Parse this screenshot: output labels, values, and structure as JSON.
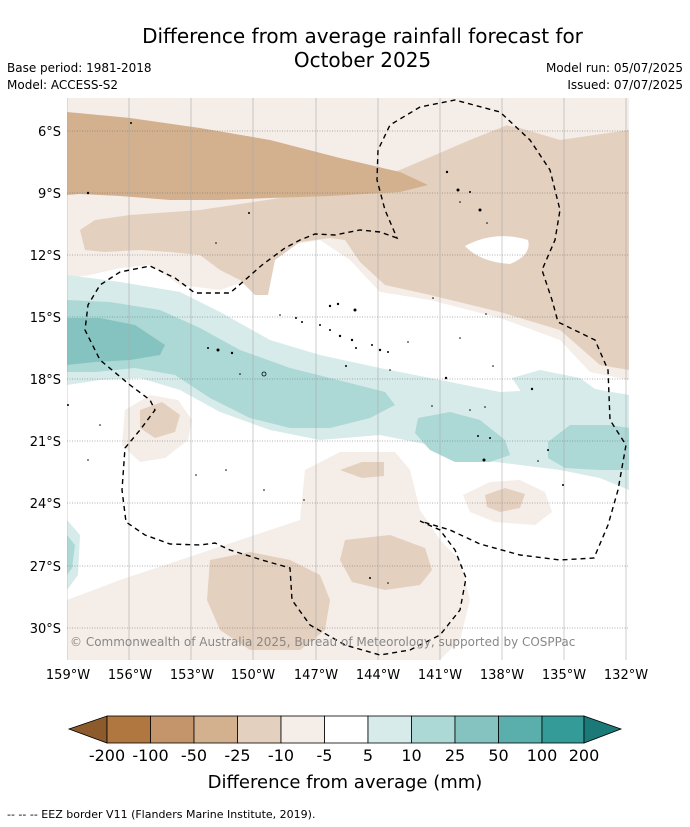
{
  "header": {
    "title_line1": "Difference from average rainfall forecast for",
    "title_line2": "October 2025",
    "base_period": "Base period: 1981-2018",
    "model": "Model: ACCESS-S2",
    "model_run": "Model run: 05/07/2025",
    "issued": "Issued: 07/07/2025"
  },
  "map": {
    "lat_labels": [
      "6°S",
      "9°S",
      "12°S",
      "15°S",
      "18°S",
      "21°S",
      "24°S",
      "27°S",
      "30°S"
    ],
    "lon_labels": [
      "159°W",
      "156°W",
      "153°W",
      "150°W",
      "147°W",
      "144°W",
      "141°W",
      "138°W",
      "135°W",
      "132°W"
    ],
    "copyright": "© Commonwealth of Australia 2025, Bureau of Meteorology, supported by COSPPac"
  },
  "colorbar": {
    "ticks": [
      "-200",
      "-100",
      "-50",
      "-25",
      "-10",
      "-5",
      "5",
      "10",
      "25",
      "50",
      "100",
      "200"
    ],
    "colors": [
      "#8c5a2b",
      "#b07840",
      "#c4956a",
      "#d3b18f",
      "#e4d0bf",
      "#f5ede7",
      "#ffffff",
      "#d6ebea",
      "#acd8d6",
      "#84c3c0",
      "#5aafac",
      "#349b98",
      "#1b7a78"
    ],
    "label": "Difference from average (mm)"
  },
  "footnote": "-- -- -- EEZ border V11 (Flanders Marine Institute, 2019)."
}
